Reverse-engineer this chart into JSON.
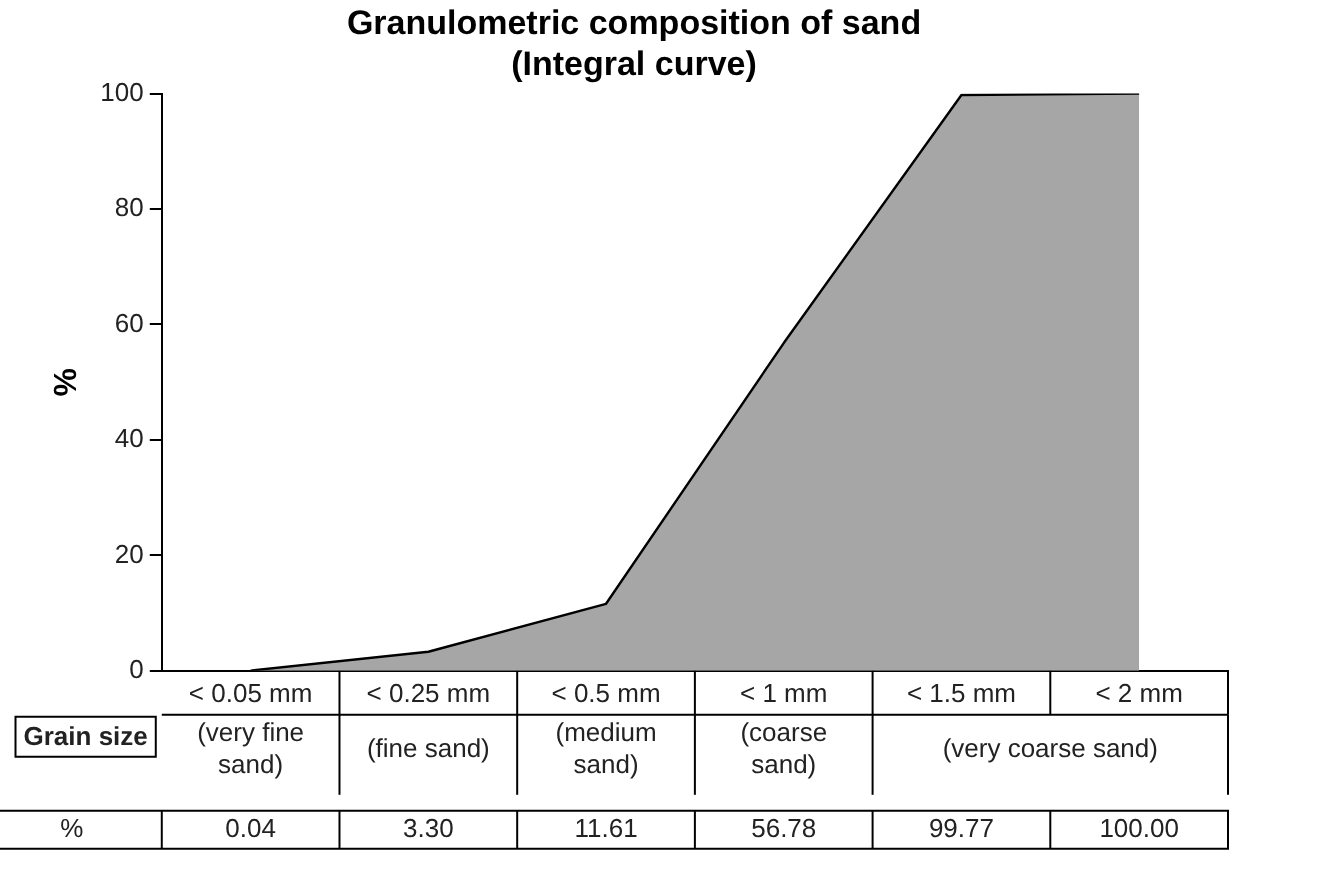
{
  "chart_data": {
    "type": "area",
    "title": "Granulometric composition of sand",
    "subtitle": "(Integral curve)",
    "ylabel": "%",
    "xlabel": "Grain size",
    "categories": [
      "< 0.05 mm",
      "< 0.25 mm",
      "< 0.5 mm",
      "< 1 mm",
      "< 1.5 mm",
      "< 2 mm"
    ],
    "series": [
      {
        "color": "#a6a6a6",
        "values": [
          0.04,
          3.3,
          11.61,
          56.78,
          99.77,
          100.0
        ],
        "value_labels": [
          "0.04",
          "3.30",
          "11.61",
          "56.78",
          "99.77",
          "100.00"
        ]
      }
    ],
    "annotations": [
      "(very fine sand)",
      "(fine sand)",
      "(medium sand)",
      "(coarse sand)",
      "(very coarse sand)",
      "%"
    ],
    "ylim": [
      0,
      100
    ],
    "yticks": [
      0,
      20,
      40,
      60,
      80,
      100
    ],
    "grid": false,
    "legend": false,
    "marker": "none"
  }
}
